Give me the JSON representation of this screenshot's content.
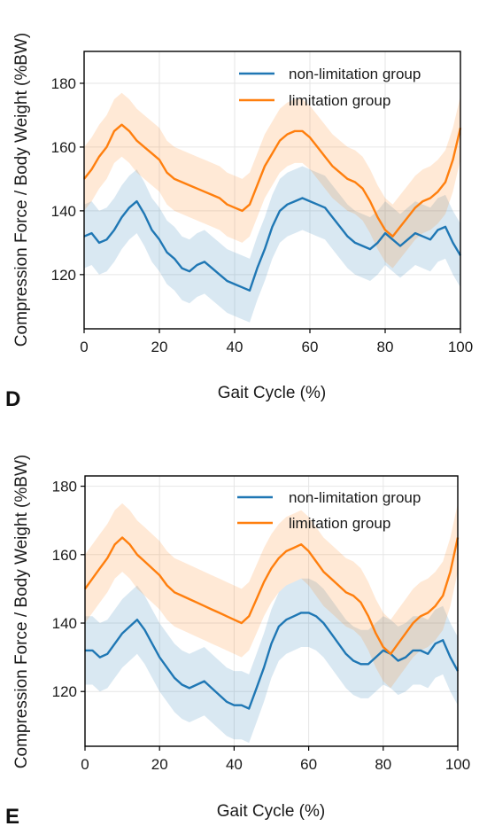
{
  "colors": {
    "series_a": "#1f77b4",
    "series_b": "#ff7f0e",
    "grid": "#e6e6e6",
    "axis": "#000000"
  },
  "chart_data": [
    {
      "panel": "D",
      "type": "line",
      "xlabel": "Gait Cycle (%)",
      "ylabel": "Compression Force / Body Weight (%BW)",
      "xlim": [
        0,
        100
      ],
      "ylim": [
        103,
        190
      ],
      "xticks": [
        "0",
        "20",
        "40",
        "60",
        "80",
        "100"
      ],
      "yticks": [
        "120",
        "140",
        "160",
        "180"
      ],
      "grid": true,
      "legend": "top-right",
      "band_halfwidth": 10,
      "series": [
        {
          "name": "non-limitation group",
          "color": "#1f77b4",
          "x": [
            0,
            2,
            4,
            6,
            8,
            10,
            12,
            14,
            16,
            18,
            20,
            22,
            24,
            26,
            28,
            30,
            32,
            34,
            36,
            38,
            40,
            42,
            44,
            46,
            48,
            50,
            52,
            54,
            56,
            58,
            60,
            62,
            64,
            66,
            68,
            70,
            72,
            74,
            76,
            78,
            80,
            82,
            84,
            86,
            88,
            90,
            92,
            94,
            96,
            98,
            100
          ],
          "y": [
            132,
            133,
            130,
            131,
            134,
            138,
            141,
            143,
            139,
            134,
            131,
            127,
            125,
            122,
            121,
            123,
            124,
            122,
            120,
            118,
            117,
            116,
            115,
            122,
            128,
            135,
            140,
            142,
            143,
            144,
            143,
            142,
            141,
            138,
            135,
            132,
            130,
            129,
            128,
            130,
            133,
            131,
            129,
            131,
            133,
            132,
            131,
            134,
            135,
            130,
            126
          ]
        },
        {
          "name": "limitation group",
          "color": "#ff7f0e",
          "x": [
            0,
            2,
            4,
            6,
            8,
            10,
            12,
            14,
            16,
            18,
            20,
            22,
            24,
            26,
            28,
            30,
            32,
            34,
            36,
            38,
            40,
            42,
            44,
            46,
            48,
            50,
            52,
            54,
            56,
            58,
            60,
            62,
            64,
            66,
            68,
            70,
            72,
            74,
            76,
            78,
            80,
            82,
            84,
            86,
            88,
            90,
            92,
            94,
            96,
            98,
            100
          ],
          "y": [
            150,
            153,
            157,
            160,
            165,
            167,
            165,
            162,
            160,
            158,
            156,
            152,
            150,
            149,
            148,
            147,
            146,
            145,
            144,
            142,
            141,
            140,
            142,
            148,
            154,
            158,
            162,
            164,
            165,
            165,
            163,
            160,
            157,
            154,
            152,
            150,
            149,
            147,
            143,
            138,
            134,
            132,
            135,
            138,
            141,
            143,
            144,
            146,
            149,
            156,
            166
          ]
        }
      ]
    },
    {
      "panel": "E",
      "type": "line",
      "xlabel": "Gait Cycle (%)",
      "ylabel": "Compression Force / Body Weight (%BW)",
      "xlim": [
        0,
        100
      ],
      "ylim": [
        104,
        183
      ],
      "xticks": [
        "0",
        "20",
        "40",
        "60",
        "80",
        "100"
      ],
      "yticks": [
        "120",
        "140",
        "160",
        "180"
      ],
      "grid": true,
      "legend": "top-right",
      "band_halfwidth": 10,
      "series": [
        {
          "name": "non-limitation group",
          "color": "#1f77b4",
          "x": [
            0,
            2,
            4,
            6,
            8,
            10,
            12,
            14,
            16,
            18,
            20,
            22,
            24,
            26,
            28,
            30,
            32,
            34,
            36,
            38,
            40,
            42,
            44,
            46,
            48,
            50,
            52,
            54,
            56,
            58,
            60,
            62,
            64,
            66,
            68,
            70,
            72,
            74,
            76,
            78,
            80,
            82,
            84,
            86,
            88,
            90,
            92,
            94,
            96,
            98,
            100
          ],
          "y": [
            132,
            132,
            130,
            131,
            134,
            137,
            139,
            141,
            138,
            134,
            130,
            127,
            124,
            122,
            121,
            122,
            123,
            121,
            119,
            117,
            116,
            116,
            115,
            121,
            127,
            134,
            139,
            141,
            142,
            143,
            143,
            142,
            140,
            137,
            134,
            131,
            129,
            128,
            128,
            130,
            132,
            131,
            129,
            130,
            132,
            132,
            131,
            134,
            135,
            130,
            126
          ]
        },
        {
          "name": "limitation group",
          "color": "#ff7f0e",
          "x": [
            0,
            2,
            4,
            6,
            8,
            10,
            12,
            14,
            16,
            18,
            20,
            22,
            24,
            26,
            28,
            30,
            32,
            34,
            36,
            38,
            40,
            42,
            44,
            46,
            48,
            50,
            52,
            54,
            56,
            58,
            60,
            62,
            64,
            66,
            68,
            70,
            72,
            74,
            76,
            78,
            80,
            82,
            84,
            86,
            88,
            90,
            92,
            94,
            96,
            98,
            100
          ],
          "y": [
            150,
            153,
            156,
            159,
            163,
            165,
            163,
            160,
            158,
            156,
            154,
            151,
            149,
            148,
            147,
            146,
            145,
            144,
            143,
            142,
            141,
            140,
            142,
            147,
            152,
            156,
            159,
            161,
            162,
            163,
            161,
            158,
            155,
            153,
            151,
            149,
            148,
            146,
            142,
            137,
            133,
            131,
            134,
            137,
            140,
            142,
            143,
            145,
            148,
            155,
            165
          ]
        }
      ]
    }
  ]
}
